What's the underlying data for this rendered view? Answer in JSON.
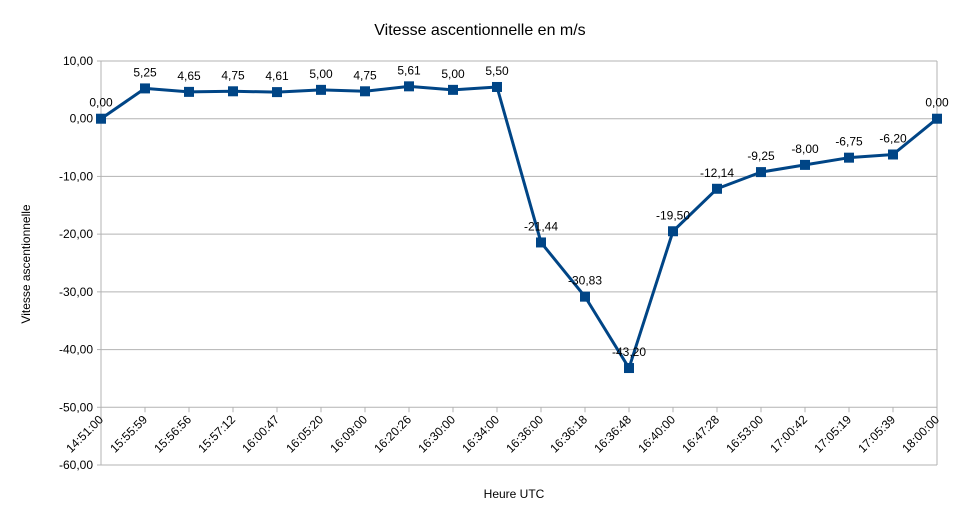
{
  "chart_data": {
    "type": "line",
    "title": "Vitesse ascentionnelle en m/s",
    "xlabel": "Heure UTC",
    "ylabel": "Vitesse ascentionnelle",
    "ylim": [
      -60,
      10
    ],
    "ystep": 10,
    "ytick_labels": [
      "10,00",
      "0,00",
      "-10,00",
      "-20,00",
      "-30,00",
      "-40,00",
      "-50,00",
      "-60,00"
    ],
    "grid": "horizontal",
    "legend": "none",
    "color": "#004586",
    "categories": [
      "14:51:00",
      "15:55:59",
      "15:56:56",
      "15:57:12",
      "16:00:47",
      "16:05:20",
      "16:09:00",
      "16:20:26",
      "16:30:00",
      "16:34:00",
      "16:36:00",
      "16:36:18",
      "16:36:48",
      "16:40:00",
      "16:47:28",
      "16:53:00",
      "17:00:42",
      "17:05:19",
      "17:05:39",
      "18:00:00"
    ],
    "series": [
      {
        "values": [
          0.0,
          5.25,
          4.65,
          4.75,
          4.61,
          5.0,
          4.75,
          5.61,
          5.0,
          5.5,
          -21.44,
          -30.83,
          -43.2,
          -19.5,
          -12.14,
          -9.25,
          -8.0,
          -6.75,
          -6.2,
          0.0
        ],
        "labels": [
          "0,00",
          "5,25",
          "4,65",
          "4,75",
          "4,61",
          "5,00",
          "4,75",
          "5,61",
          "5,00",
          "5,50",
          "-21,44",
          "-30,83",
          "-43,20",
          "-19,50",
          "-12,14",
          "-9,25",
          "-8,00",
          "-6,75",
          "-6,20",
          "0,00"
        ]
      }
    ]
  }
}
